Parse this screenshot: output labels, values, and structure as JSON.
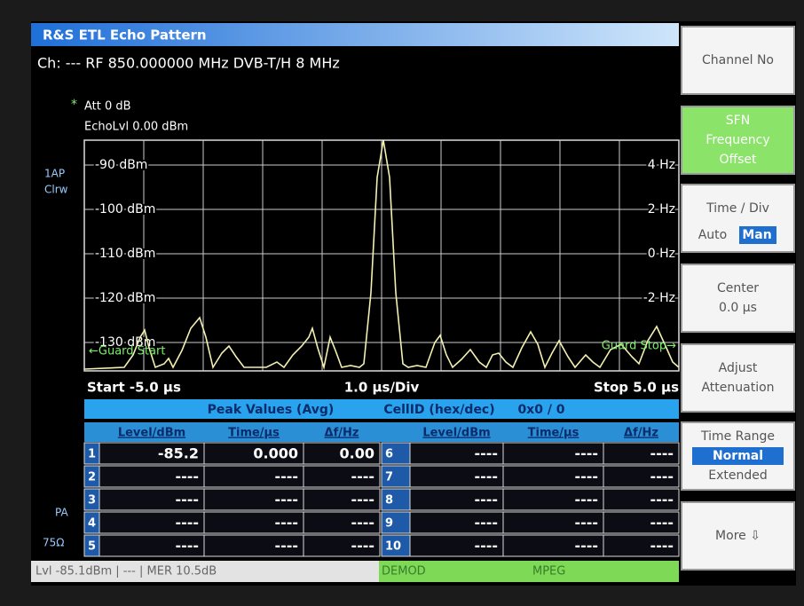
{
  "title": "R&S ETL Echo Pattern",
  "channel_line": "Ch: ---  RF 850.000000 MHz  DVB-T/H  8 MHz",
  "settings": {
    "marker": "*",
    "att": "Att  0 dB",
    "echo_level": "EchoLvl 0.00 dBm"
  },
  "side_labels": {
    "trace": "1AP",
    "mode": "Clrw",
    "pa": "PA",
    "impedance": "75Ω"
  },
  "plot": {
    "left_labels": [
      "-90 dBm",
      "-100 dBm",
      "-110 dBm",
      "-120 dBm",
      "-130 dBm"
    ],
    "right_labels": [
      "4 Hz",
      "2 Hz",
      "0 Hz",
      "-2 Hz"
    ],
    "guard_start": "←Guard Start",
    "guard_stop": "Guard Stop→",
    "start": "Start -5.0 µs",
    "div": "1.0 µs/Div",
    "stop": "Stop 5.0 µs"
  },
  "table": {
    "header": [
      "Peak Values (Avg)",
      "CellID (hex/dec)",
      "0x0 / 0"
    ],
    "columns": [
      "Level/dBm",
      "Time/µs",
      "Δf/Hz"
    ],
    "rows": [
      [
        "1",
        "-85.2",
        "0.000",
        "0.00"
      ],
      [
        "2",
        "----",
        "----",
        "----"
      ],
      [
        "3",
        "----",
        "----",
        "----"
      ],
      [
        "4",
        "----",
        "----",
        "----"
      ],
      [
        "5",
        "----",
        "----",
        "----"
      ],
      [
        "6",
        "----",
        "----",
        "----"
      ],
      [
        "7",
        "----",
        "----",
        "----"
      ],
      [
        "8",
        "----",
        "----",
        "----"
      ],
      [
        "9",
        "----",
        "----",
        "----"
      ],
      [
        "10",
        "----",
        "----",
        "----"
      ]
    ]
  },
  "status": [
    "Lvl -85.1dBm | --- | MER 10.5dB",
    "DEMOD",
    "MPEG"
  ],
  "softkeys": [
    {
      "lines": [
        "Channel No"
      ]
    },
    {
      "lines": [
        "SFN",
        "Frequency",
        "Offset"
      ],
      "active": true
    },
    {
      "lines": [
        "Time / Div"
      ],
      "options": [
        "Auto",
        "Man"
      ],
      "selected": 1
    },
    {
      "lines": [
        "Center",
        "0.0 µs"
      ]
    },
    {
      "lines": [
        "Adjust",
        "Attenuation"
      ]
    },
    {
      "lines": [
        "Time Range"
      ],
      "options": [
        "Normal",
        "Extended"
      ],
      "selected": 0
    },
    {
      "lines": [
        "More ⇩"
      ]
    }
  ]
}
